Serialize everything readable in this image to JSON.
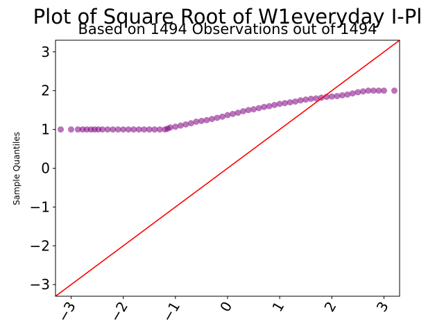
{
  "chart_data": {
    "type": "scatter",
    "title": "Plot of Square Root of W1everyday I-Pl",
    "subtitle": "Based on 1494 Observations out of 1494",
    "xlabel": "",
    "ylabel": "Sample Quantiles",
    "xlim": [
      -3.3,
      3.3
    ],
    "ylim": [
      -3.3,
      3.3
    ],
    "xticks": [
      -3,
      -2,
      -1,
      0,
      1,
      2,
      3
    ],
    "xtick_labels": [
      "−3",
      "−2",
      "−1",
      "0",
      "1",
      "2",
      "3"
    ],
    "yticks": [
      -3,
      -2,
      -1,
      0,
      1,
      2,
      3
    ],
    "ytick_labels": [
      "−3",
      "−2",
      "−1",
      "0",
      "1",
      "2",
      "3"
    ],
    "grid": false,
    "reference_line": {
      "slope": 1,
      "intercept": 0,
      "color": "#ff0000"
    },
    "series": [
      {
        "marker_color": "#800080",
        "points": [
          [
            -3.2,
            1.0
          ],
          [
            -3.0,
            1.0
          ],
          [
            -2.87,
            1.0
          ],
          [
            -2.78,
            1.0
          ],
          [
            -2.7,
            1.0
          ],
          [
            -2.62,
            1.0
          ],
          [
            -2.55,
            1.0
          ],
          [
            -2.48,
            1.0
          ],
          [
            -2.4,
            1.0
          ],
          [
            -2.3,
            1.0
          ],
          [
            -2.2,
            1.0
          ],
          [
            -2.1,
            1.0
          ],
          [
            -2.0,
            1.0
          ],
          [
            -1.9,
            1.0
          ],
          [
            -1.8,
            1.0
          ],
          [
            -1.7,
            1.0
          ],
          [
            -1.6,
            1.0
          ],
          [
            -1.5,
            1.0
          ],
          [
            -1.4,
            1.0
          ],
          [
            -1.3,
            1.0
          ],
          [
            -1.2,
            1.0
          ],
          [
            -1.15,
            1.02
          ],
          [
            -1.1,
            1.05
          ],
          [
            -1.0,
            1.07
          ],
          [
            -0.9,
            1.1
          ],
          [
            -0.8,
            1.13
          ],
          [
            -0.7,
            1.16
          ],
          [
            -0.6,
            1.2
          ],
          [
            -0.5,
            1.22
          ],
          [
            -0.4,
            1.24
          ],
          [
            -0.3,
            1.27
          ],
          [
            -0.2,
            1.3
          ],
          [
            -0.1,
            1.33
          ],
          [
            0.0,
            1.37
          ],
          [
            0.1,
            1.4
          ],
          [
            0.2,
            1.43
          ],
          [
            0.3,
            1.47
          ],
          [
            0.4,
            1.5
          ],
          [
            0.5,
            1.52
          ],
          [
            0.6,
            1.55
          ],
          [
            0.7,
            1.58
          ],
          [
            0.8,
            1.6
          ],
          [
            0.9,
            1.63
          ],
          [
            1.0,
            1.66
          ],
          [
            1.1,
            1.68
          ],
          [
            1.2,
            1.7
          ],
          [
            1.3,
            1.72
          ],
          [
            1.4,
            1.75
          ],
          [
            1.5,
            1.77
          ],
          [
            1.6,
            1.79
          ],
          [
            1.7,
            1.8
          ],
          [
            1.8,
            1.82
          ],
          [
            1.9,
            1.84
          ],
          [
            2.0,
            1.85
          ],
          [
            2.1,
            1.86
          ],
          [
            2.2,
            1.88
          ],
          [
            2.3,
            1.9
          ],
          [
            2.4,
            1.93
          ],
          [
            2.5,
            1.96
          ],
          [
            2.6,
            1.98
          ],
          [
            2.7,
            2.0
          ],
          [
            2.8,
            2.0
          ],
          [
            2.9,
            2.0
          ],
          [
            3.0,
            2.0
          ],
          [
            3.2,
            2.0
          ]
        ]
      }
    ]
  }
}
